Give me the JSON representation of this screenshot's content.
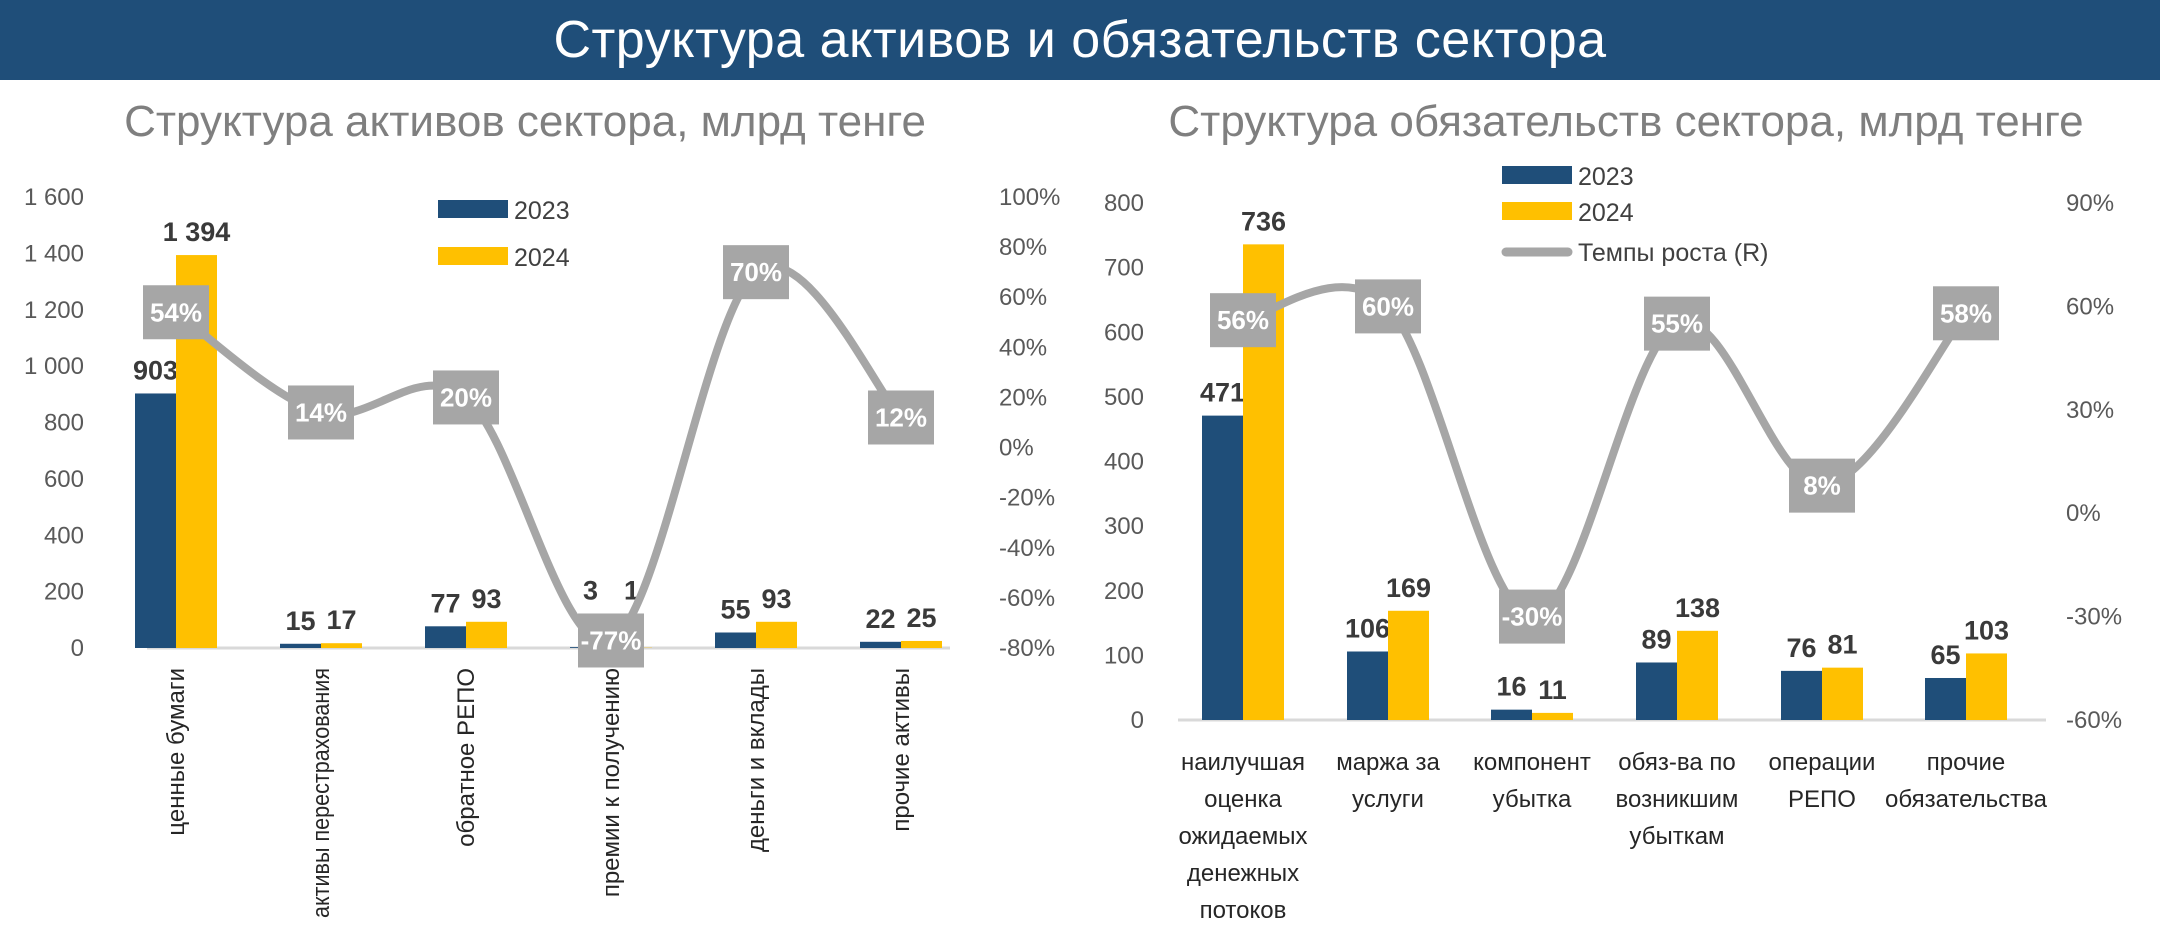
{
  "header": {
    "title": "Структура активов и обязательств сектора"
  },
  "colors": {
    "banner": "#1f4e79",
    "series_2023": "#1f4e79",
    "series_2024": "#ffc000",
    "growth_line": "#a6a6a6",
    "growth_label_box": "#a6a6a6"
  },
  "chart_data": [
    {
      "type": "bar",
      "title": "Структура активов сектора, млрд тенге",
      "categories": [
        "ценные бумаги",
        "активы перестрахования",
        "обратное РЕПО",
        "премии к получению",
        "деньги и вклады",
        "прочие активы"
      ],
      "category_lines": [
        [
          "ценные бумаги"
        ],
        [
          "активы перестрахования"
        ],
        [
          "обратное РЕПО"
        ],
        [
          "премии к получению"
        ],
        [
          "деньги и вклады"
        ],
        [
          "прочие активы"
        ]
      ],
      "series": [
        {
          "name": "2023",
          "values": [
            903,
            15,
            77,
            3,
            55,
            22
          ],
          "labels": [
            "903",
            "15",
            "77",
            "3",
            "55",
            "22"
          ]
        },
        {
          "name": "2024",
          "values": [
            1394,
            17,
            93,
            1,
            93,
            25
          ],
          "labels": [
            "1 394",
            "17",
            "93",
            "1",
            "93",
            "25"
          ]
        }
      ],
      "growth": {
        "values": [
          54,
          14,
          20,
          -77,
          70,
          12
        ],
        "labels": [
          "54%",
          "14%",
          "20%",
          "-77%",
          "70%",
          "12%"
        ]
      },
      "ylim": [
        0,
        1600
      ],
      "y_ticks": [
        "1 600",
        "1 400",
        "1 200",
        "1 000",
        "800",
        "600",
        "400",
        "200",
        "0"
      ],
      "y2lim": [
        -80,
        100
      ],
      "y2_ticks": [
        "100%",
        "80%",
        "60%",
        "40%",
        "20%",
        "0%",
        "-20%",
        "-40%",
        "-60%",
        "-80%"
      ],
      "legend": [
        "2023",
        "2024"
      ],
      "legend_placement": "top-center",
      "grid": false
    },
    {
      "type": "bar",
      "title": "Структура обязательств сектора, млрд тенге",
      "categories": [
        "наилучшая оценка ожидаемых денежных потоков",
        "маржа за услуги",
        "компонент убытка",
        "обяз-ва по возникшим убыткам",
        "операции РЕПО",
        "прочие обязательства"
      ],
      "category_lines": [
        [
          "наилучшая",
          "оценка",
          "ожидаемых",
          "денежных",
          "потоков"
        ],
        [
          "маржа за",
          "услуги"
        ],
        [
          "компонент",
          "убытка"
        ],
        [
          "обяз-ва по",
          "возникшим",
          "убыткам"
        ],
        [
          "операции",
          "РЕПО"
        ],
        [
          "прочие",
          "обязательства"
        ]
      ],
      "series": [
        {
          "name": "2023",
          "values": [
            471,
            106,
            16,
            89,
            76,
            65
          ],
          "labels": [
            "471",
            "106",
            "16",
            "89",
            "76",
            "65"
          ]
        },
        {
          "name": "2024",
          "values": [
            736,
            169,
            11,
            138,
            81,
            103
          ],
          "labels": [
            "736",
            "169",
            "11",
            "138",
            "81",
            "103"
          ]
        }
      ],
      "growth": {
        "name": "Темпы роста (R)",
        "values": [
          56,
          60,
          -30,
          55,
          8,
          58
        ],
        "labels": [
          "56%",
          "60%",
          "-30%",
          "55%",
          "8%",
          "58%"
        ]
      },
      "ylim": [
        0,
        800
      ],
      "y_ticks": [
        "800",
        "700",
        "600",
        "500",
        "400",
        "300",
        "200",
        "100",
        "0"
      ],
      "y2lim": [
        -60,
        90
      ],
      "y2_ticks": [
        "90%",
        "60%",
        "30%",
        "0%",
        "-30%",
        "-60%"
      ],
      "legend": [
        "2023",
        "2024",
        "Темпы роста (R)"
      ],
      "legend_placement": "top-center",
      "grid": false
    }
  ]
}
